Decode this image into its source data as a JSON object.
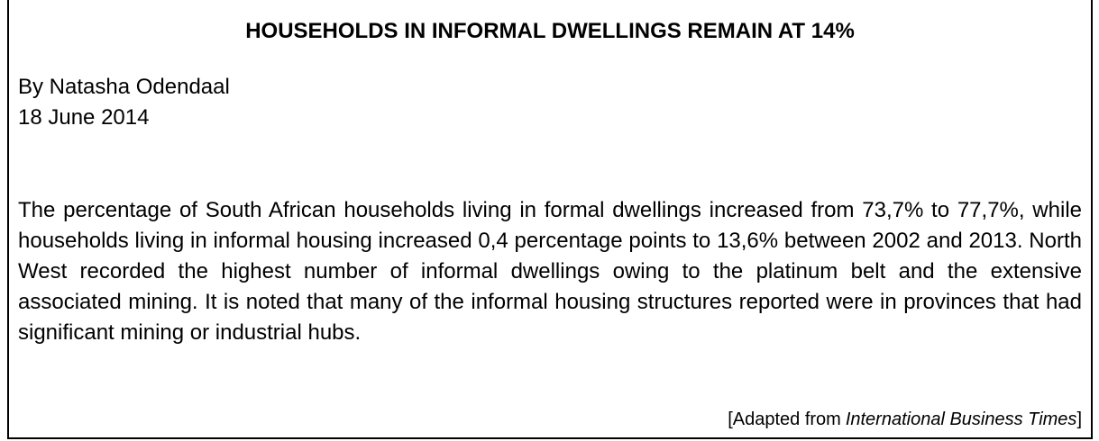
{
  "header": {
    "title": "HOUSEHOLDS IN INFORMAL DWELLINGS REMAIN AT 14%"
  },
  "byline": {
    "author": "By Natasha Odendaal",
    "date": "18 June 2014"
  },
  "body": {
    "paragraph": "The percentage of South African households living in formal dwellings increased from 73,7% to 77,7%, while households living in informal housing increased 0,4 percentage points to 13,6% between 2002 and 2013. North West recorded the highest number of informal dwellings owing to the platinum belt and the extensive associated mining. It is noted that many of the informal housing structures reported were in provinces that had significant mining or industrial hubs."
  },
  "source": {
    "prefix": "[Adapted from",
    "publication": "International Business Times",
    "suffix": "]"
  }
}
